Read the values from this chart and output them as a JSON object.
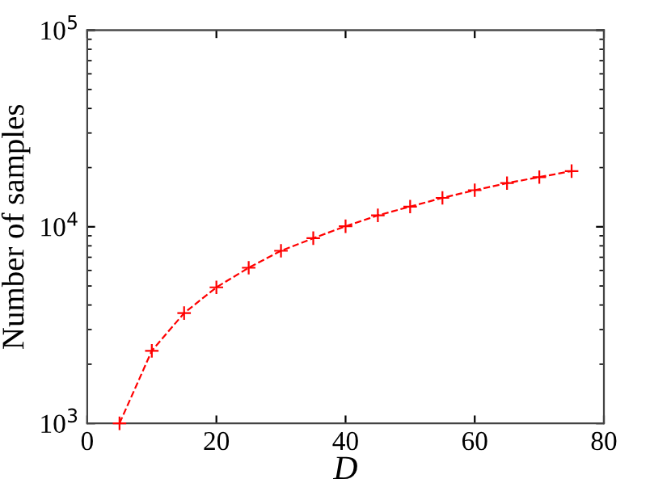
{
  "chart_data": {
    "type": "line",
    "xlabel": "D",
    "ylabel": "Number of samples",
    "x": [
      5,
      10,
      15,
      20,
      25,
      30,
      35,
      40,
      45,
      50,
      55,
      60,
      65,
      70,
      75
    ],
    "series": [
      {
        "color": "#ff0000",
        "values": [
          1000,
          2340,
          3640,
          4920,
          6190,
          7550,
          8750,
          10060,
          11430,
          12670,
          14030,
          15350,
          16680,
          17900,
          19200
        ]
      }
    ],
    "marker": "cross",
    "line_style": "dashed",
    "log": "y",
    "grid": false,
    "legend": false,
    "xlim": [
      0,
      80
    ],
    "xticks": [
      0,
      20,
      40,
      60,
      80
    ],
    "ylim": [
      1000,
      100000
    ],
    "yticks": [
      {
        "value": 1000,
        "label": "10$^{3}$"
      },
      {
        "value": 10000,
        "label": "10$^{4}$"
      },
      {
        "value": 100000,
        "label": "10$^{5}$"
      }
    ]
  }
}
